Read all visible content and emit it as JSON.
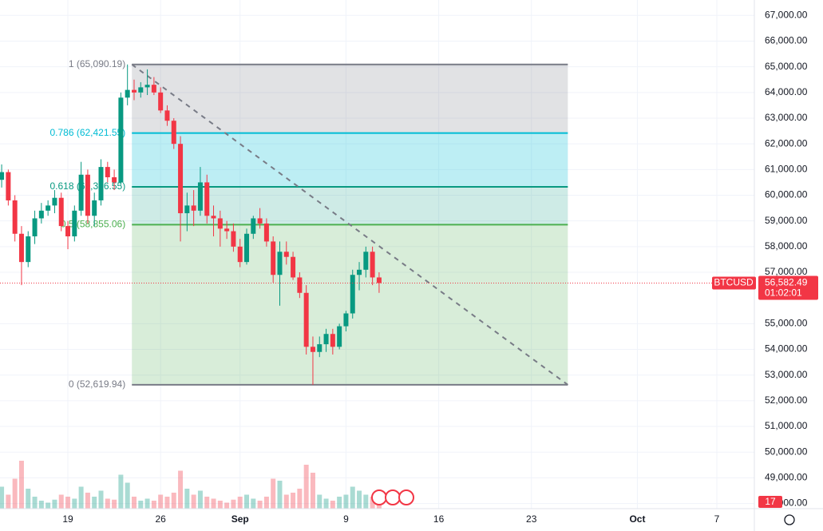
{
  "chart_data": {
    "type": "candlestick",
    "symbol": "BTCUSD",
    "last_price": {
      "value": 56582.49,
      "label": "56,582.49"
    },
    "countdown": "01:02:01",
    "volume_badge": "17",
    "bull_color": "#089981",
    "bear_color": "#f23645",
    "grid": true,
    "xlim": [
      "Aug 13 21:00",
      "Oct 9 20:00"
    ],
    "xticks": [
      {
        "value": "Aug 19 00:00",
        "label": "19"
      },
      {
        "value": "Aug 26 00:00",
        "label": "26"
      },
      {
        "value": "Sep 1 00:00",
        "label": "Sep"
      },
      {
        "value": "Sep 9 00:00",
        "label": "9"
      },
      {
        "value": "Sep 16 00:00",
        "label": "16"
      },
      {
        "value": "Sep 23 00:00",
        "label": "23"
      },
      {
        "value": "Oct 1 00:00",
        "label": "Oct"
      },
      {
        "value": "Oct 7 00:00",
        "label": "7"
      }
    ],
    "ylim": [
      47800,
      67600
    ],
    "yticks": [
      {
        "value": 48000,
        "label": "48,000.00"
      },
      {
        "value": 49000,
        "label": "49,000.00"
      },
      {
        "value": 50000,
        "label": "50,000.00"
      },
      {
        "value": 51000,
        "label": "51,000.00"
      },
      {
        "value": 52000,
        "label": "52,000.00"
      },
      {
        "value": 53000,
        "label": "53,000.00"
      },
      {
        "value": 54000,
        "label": "54,000.00"
      },
      {
        "value": 55000,
        "label": "55,000.00"
      },
      {
        "value": 57000,
        "label": "57,000.00"
      },
      {
        "value": 58000,
        "label": "58,000.00"
      },
      {
        "value": 59000,
        "label": "59,000.00"
      },
      {
        "value": 60000,
        "label": "60,000.00"
      },
      {
        "value": 61000,
        "label": "61,000.00"
      },
      {
        "value": 62000,
        "label": "62,000.00"
      },
      {
        "value": 63000,
        "label": "63,000.00"
      },
      {
        "value": 64000,
        "label": "64,000.00"
      },
      {
        "value": 65000,
        "label": "65,000.00"
      },
      {
        "value": 66000,
        "label": "66,000.00"
      },
      {
        "value": 67000,
        "label": "67,000.00"
      }
    ],
    "fib": {
      "start": "Aug 23 20:00",
      "end": "Sep 25 18:00",
      "levels": [
        {
          "value": 65090.19,
          "label": "1 (65,090.19)",
          "color": "#787b86",
          "fill": "rgba(120,123,134,0.22)"
        },
        {
          "value": 62421.55,
          "label": "0.786 (62,421.55)",
          "color": "#00bcd4",
          "fill": "rgba(0,188,212,0.26)"
        },
        {
          "value": 60326.55,
          "label": "0.618 (60,326.55)",
          "color": "#089981",
          "fill": "rgba(8,153,129,0.2)"
        },
        {
          "value": 58855.06,
          "label": "0.5 (58,855.06)",
          "color": "#4caf50",
          "fill": "rgba(76,175,80,0.22)"
        },
        {
          "value": 52619.94,
          "label": "0 (52,619.94)",
          "color": "#787b86",
          "fill": "none"
        }
      ]
    },
    "x": [
      "Aug 14 00:00",
      "Aug 14 12:00",
      "Aug 15 00:00",
      "Aug 15 12:00",
      "Aug 16 00:00",
      "Aug 16 12:00",
      "Aug 17 00:00",
      "Aug 17 12:00",
      "Aug 18 00:00",
      "Aug 18 12:00",
      "Aug 19 00:00",
      "Aug 19 12:00",
      "Aug 20 00:00",
      "Aug 20 12:00",
      "Aug 21 00:00",
      "Aug 21 12:00",
      "Aug 22 00:00",
      "Aug 22 12:00",
      "Aug 23 00:00",
      "Aug 23 12:00",
      "Aug 24 00:00",
      "Aug 24 12:00",
      "Aug 25 00:00",
      "Aug 25 12:00",
      "Aug 26 00:00",
      "Aug 26 12:00",
      "Aug 27 00:00",
      "Aug 27 12:00",
      "Aug 28 00:00",
      "Aug 28 12:00",
      "Aug 29 00:00",
      "Aug 29 12:00",
      "Aug 30 00:00",
      "Aug 30 12:00",
      "Aug 31 00:00",
      "Aug 31 12:00",
      "Sep 1 00:00",
      "Sep 1 12:00",
      "Sep 2 00:00",
      "Sep 2 12:00",
      "Sep 3 00:00",
      "Sep 3 12:00",
      "Sep 4 00:00",
      "Sep 4 12:00",
      "Sep 5 00:00",
      "Sep 5 12:00",
      "Sep 6 00:00",
      "Sep 6 12:00",
      "Sep 7 00:00",
      "Sep 7 12:00",
      "Sep 8 00:00",
      "Sep 8 12:00",
      "Sep 9 00:00",
      "Sep 9 12:00",
      "Sep 10 00:00",
      "Sep 10 12:00",
      "Sep 11 00:00",
      "Sep 11 12:00"
    ],
    "open": [
      60600,
      60900,
      59800,
      58500,
      57400,
      58400,
      59100,
      59400,
      59600,
      59900,
      58800,
      58400,
      59400,
      60800,
      59200,
      59800,
      61100,
      60700,
      60500,
      63800,
      64100,
      64000,
      64200,
      64300,
      64000,
      63300,
      62900,
      62000,
      59300,
      59600,
      59400,
      60500,
      59200,
      59100,
      58700,
      58600,
      58000,
      57400,
      58500,
      59100,
      58900,
      58200,
      56900,
      57800,
      57600,
      56800,
      56200,
      54100,
      53900,
      54200,
      54600,
      54100,
      54900,
      55400,
      56900,
      57100,
      57800,
      56800
    ],
    "high": [
      61200,
      61000,
      60000,
      58800,
      58600,
      59400,
      59700,
      59800,
      60200,
      60100,
      59000,
      59600,
      61300,
      61000,
      60100,
      61400,
      61300,
      61000,
      64000,
      65090,
      64500,
      64400,
      64900,
      64600,
      64200,
      63500,
      63000,
      62300,
      60100,
      60200,
      61100,
      60800,
      59600,
      59400,
      59000,
      58900,
      58300,
      58700,
      59200,
      59500,
      59100,
      58400,
      58200,
      58200,
      57800,
      57000,
      56500,
      54500,
      54500,
      54800,
      54800,
      55000,
      55500,
      57100,
      57400,
      58000,
      58000,
      57000
    ],
    "low": [
      60300,
      59600,
      58200,
      56500,
      57200,
      58100,
      58900,
      59200,
      59300,
      58600,
      57900,
      58200,
      59200,
      58900,
      58800,
      59600,
      60500,
      60200,
      60400,
      63500,
      63700,
      63800,
      63900,
      63900,
      63200,
      62700,
      61800,
      58200,
      58600,
      58800,
      59200,
      58900,
      58400,
      58000,
      58300,
      57800,
      57200,
      57300,
      58300,
      58700,
      58000,
      56600,
      55700,
      57300,
      56700,
      56000,
      53800,
      52620,
      53700,
      53900,
      53800,
      54000,
      54700,
      55200,
      56300,
      56800,
      56500,
      56200
    ],
    "close": [
      60900,
      59800,
      58500,
      57400,
      58400,
      59100,
      59400,
      59600,
      59900,
      58800,
      58400,
      59400,
      60800,
      59200,
      59800,
      61100,
      60700,
      60500,
      63800,
      64100,
      64000,
      64200,
      64300,
      64000,
      63300,
      62900,
      62000,
      59300,
      59600,
      59400,
      60500,
      59200,
      59100,
      58700,
      58600,
      58000,
      57400,
      58500,
      59100,
      58900,
      58200,
      56900,
      57800,
      57600,
      56800,
      56200,
      54100,
      53900,
      54200,
      54600,
      54100,
      54900,
      55400,
      56900,
      57100,
      57800,
      56800,
      56582.49
    ],
    "volume": [
      22,
      14,
      30,
      48,
      20,
      12,
      8,
      6,
      9,
      14,
      12,
      10,
      22,
      16,
      12,
      18,
      10,
      9,
      34,
      26,
      12,
      8,
      10,
      8,
      14,
      12,
      16,
      38,
      20,
      14,
      18,
      12,
      10,
      8,
      6,
      9,
      12,
      14,
      10,
      8,
      12,
      30,
      28,
      14,
      16,
      20,
      44,
      36,
      14,
      10,
      8,
      12,
      14,
      22,
      18,
      14,
      12,
      10
    ]
  }
}
